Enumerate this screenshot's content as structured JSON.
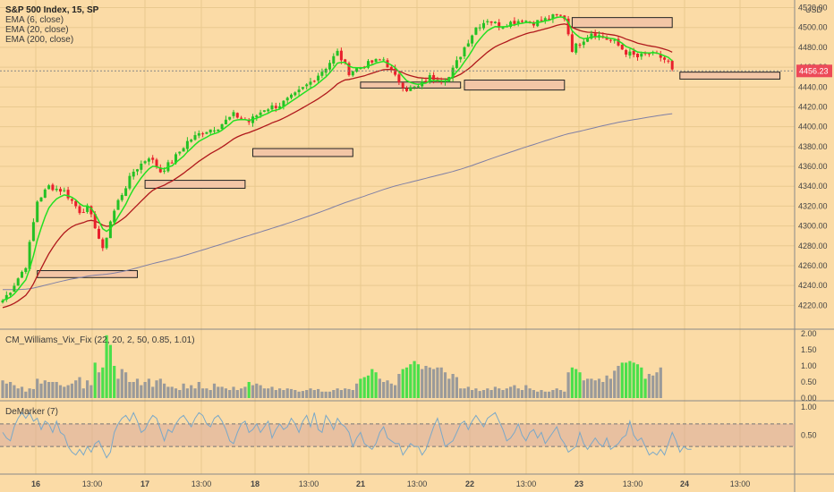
{
  "header": {
    "symbol_line": "S&P 500 Index, 15, SP",
    "currency": "USD",
    "last_price": "4456.23"
  },
  "indicators": {
    "ema6": "EMA (6, close)",
    "ema20": "EMA (20, close)",
    "ema200": "EMA (200, close)",
    "vix_fix": "CM_Williams_Vix_Fix (22, 20, 2, 50, 0.85, 1.01)",
    "demarker": "DeMarker (7)"
  },
  "colors": {
    "background": "#fbdba6",
    "up_candle": "#24c124",
    "down_candle": "#e8202c",
    "ema6": "#22e022",
    "ema20": "#b0181c",
    "ema200": "#7f7fa5",
    "vix_normal": "#9a9a9a",
    "vix_high": "#4be04b",
    "demarker_line": "#7aa8c8",
    "price_tag": "#ed4a59"
  },
  "chart_data": [
    {
      "type": "candlestick",
      "title": "S&P 500 Index, 15, SP",
      "ylim": [
        4205,
        4525
      ],
      "y_ticks": [
        "4220.00",
        "4240.00",
        "4260.00",
        "4280.00",
        "4300.00",
        "4320.00",
        "4340.00",
        "4360.00",
        "4380.00",
        "4400.00",
        "4420.00",
        "4440.00",
        "4460.00",
        "4480.00",
        "4500.00",
        "4520.00"
      ],
      "x_ticks": [
        "16",
        "13:00",
        "17",
        "13:00",
        "18",
        "13:00",
        "21",
        "13:00",
        "22",
        "13:00",
        "23",
        "13:00",
        "24",
        "13:00"
      ],
      "anchors": [
        {
          "t": 0,
          "p": 4225
        },
        {
          "t": 2,
          "p": 4235
        },
        {
          "t": 6,
          "p": 4260
        },
        {
          "t": 9,
          "p": 4325
        },
        {
          "t": 12,
          "p": 4340
        },
        {
          "t": 16,
          "p": 4335
        },
        {
          "t": 20,
          "p": 4315
        },
        {
          "t": 22,
          "p": 4318
        },
        {
          "t": 24,
          "p": 4300
        },
        {
          "t": 26,
          "p": 4275
        },
        {
          "t": 28,
          "p": 4305
        },
        {
          "t": 30,
          "p": 4325
        },
        {
          "t": 34,
          "p": 4355
        },
        {
          "t": 38,
          "p": 4370
        },
        {
          "t": 41,
          "p": 4355
        },
        {
          "t": 44,
          "p": 4365
        },
        {
          "t": 48,
          "p": 4385
        },
        {
          "t": 52,
          "p": 4395
        },
        {
          "t": 56,
          "p": 4400
        },
        {
          "t": 60,
          "p": 4412
        },
        {
          "t": 64,
          "p": 4405
        },
        {
          "t": 68,
          "p": 4418
        },
        {
          "t": 72,
          "p": 4422
        },
        {
          "t": 76,
          "p": 4432
        },
        {
          "t": 80,
          "p": 4445
        },
        {
          "t": 84,
          "p": 4460
        },
        {
          "t": 87,
          "p": 4475
        },
        {
          "t": 90,
          "p": 4455
        },
        {
          "t": 93,
          "p": 4460
        },
        {
          "t": 96,
          "p": 4465
        },
        {
          "t": 99,
          "p": 4468
        },
        {
          "t": 102,
          "p": 4450
        },
        {
          "t": 105,
          "p": 4438
        },
        {
          "t": 108,
          "p": 4440
        },
        {
          "t": 111,
          "p": 4450
        },
        {
          "t": 114,
          "p": 4448
        },
        {
          "t": 116,
          "p": 4450
        },
        {
          "t": 118,
          "p": 4465
        },
        {
          "t": 120,
          "p": 4480
        },
        {
          "t": 123,
          "p": 4500
        },
        {
          "t": 126,
          "p": 4508
        },
        {
          "t": 129,
          "p": 4502
        },
        {
          "t": 132,
          "p": 4505
        },
        {
          "t": 135,
          "p": 4508
        },
        {
          "t": 138,
          "p": 4505
        },
        {
          "t": 141,
          "p": 4508
        },
        {
          "t": 144,
          "p": 4512
        },
        {
          "t": 146,
          "p": 4510
        },
        {
          "t": 148,
          "p": 4478
        },
        {
          "t": 150,
          "p": 4485
        },
        {
          "t": 153,
          "p": 4495
        },
        {
          "t": 156,
          "p": 4490
        },
        {
          "t": 159,
          "p": 4485
        },
        {
          "t": 162,
          "p": 4475
        },
        {
          "t": 165,
          "p": 4470
        },
        {
          "t": 168,
          "p": 4474
        },
        {
          "t": 171,
          "p": 4470
        },
        {
          "t": 173,
          "p": 4465
        },
        {
          "t": 174,
          "p": 4456
        }
      ],
      "ema200_start": 4236,
      "zones": [
        {
          "t0": 9,
          "t1": 35,
          "low": 4248,
          "high": 4255
        },
        {
          "t0": 37,
          "t1": 63,
          "low": 4338,
          "high": 4346
        },
        {
          "t0": 65,
          "t1": 91,
          "low": 4370,
          "high": 4378
        },
        {
          "t0": 93,
          "t1": 119,
          "low": 4439,
          "high": 4445
        },
        {
          "t0": 120,
          "t1": 146,
          "low": 4437,
          "high": 4447
        },
        {
          "t0": 148,
          "t1": 174,
          "low": 4500,
          "high": 4510
        },
        {
          "t0": 176,
          "t1": 202,
          "low": 4448,
          "high": 4455
        }
      ]
    },
    {
      "type": "bar",
      "title": "CM_Williams_Vix_Fix (22, 20, 2, 50, 0.85, 1.01)",
      "ylim": [
        0,
        2
      ],
      "y_ticks": [
        "0.00",
        "0.50",
        "1.00",
        "1.50",
        "2.00"
      ],
      "values": [
        0.55,
        0.45,
        0.5,
        0.4,
        0.3,
        0.35,
        0.2,
        0.3,
        0.28,
        0.6,
        0.45,
        0.55,
        0.5,
        0.5,
        0.5,
        0.4,
        0.35,
        0.4,
        0.45,
        0.55,
        0.65,
        0.3,
        0.55,
        0.4,
        1.1,
        0.8,
        0.95,
        1.95,
        1.65,
        1.0,
        0.6,
        0.9,
        0.8,
        0.5,
        0.5,
        0.6,
        0.4,
        0.5,
        0.6,
        0.35,
        0.55,
        0.6,
        0.45,
        0.35,
        0.35,
        0.3,
        0.25,
        0.45,
        0.3,
        0.4,
        0.3,
        0.5,
        0.3,
        0.3,
        0.25,
        0.45,
        0.35,
        0.35,
        0.3,
        0.25,
        0.35,
        0.25,
        0.3,
        0.35,
        0.5,
        0.4,
        0.45,
        0.4,
        0.3,
        0.3,
        0.35,
        0.25,
        0.3,
        0.25,
        0.3,
        0.28,
        0.25,
        0.2,
        0.22,
        0.25,
        0.3,
        0.25,
        0.28,
        0.2,
        0.2,
        0.2,
        0.25,
        0.3,
        0.25,
        0.3,
        0.28,
        0.25,
        0.45,
        0.6,
        0.65,
        0.7,
        0.9,
        0.8,
        0.6,
        0.5,
        0.55,
        0.45,
        0.4,
        0.75,
        0.9,
        0.95,
        1.05,
        1.15,
        1.05,
        0.9,
        1.0,
        0.95,
        0.9,
        0.95,
        0.95,
        0.8,
        0.6,
        0.75,
        0.65,
        0.3,
        0.3,
        0.35,
        0.25,
        0.3,
        0.22,
        0.25,
        0.3,
        0.25,
        0.35,
        0.3,
        0.25,
        0.3,
        0.35,
        0.4,
        0.3,
        0.25,
        0.4,
        0.3,
        0.25,
        0.2,
        0.25,
        0.2,
        0.2,
        0.25,
        0.3,
        0.25,
        0.2,
        0.8,
        0.95,
        0.9,
        0.8,
        0.55,
        0.6,
        0.6,
        0.55,
        0.6,
        0.5,
        0.7,
        0.6,
        0.85,
        1.0,
        1.1,
        1.1,
        1.15,
        1.1,
        1.05,
        0.95,
        0.6,
        0.75,
        0.7,
        0.8,
        0.95
      ],
      "highlighted": [
        false,
        false,
        false,
        false,
        false,
        false,
        false,
        false,
        false,
        false,
        false,
        false,
        false,
        false,
        false,
        false,
        false,
        false,
        false,
        false,
        false,
        false,
        false,
        false,
        true,
        false,
        true,
        true,
        true,
        true,
        false,
        false,
        false,
        false,
        false,
        false,
        false,
        false,
        false,
        false,
        false,
        false,
        false,
        false,
        false,
        false,
        false,
        false,
        false,
        false,
        false,
        false,
        false,
        false,
        false,
        false,
        false,
        false,
        false,
        false,
        false,
        false,
        false,
        false,
        true,
        false,
        false,
        false,
        false,
        false,
        false,
        false,
        false,
        false,
        false,
        false,
        false,
        false,
        false,
        false,
        false,
        false,
        false,
        false,
        false,
        false,
        false,
        false,
        false,
        false,
        false,
        false,
        false,
        true,
        true,
        true,
        true,
        true,
        false,
        false,
        false,
        false,
        false,
        false,
        true,
        true,
        true,
        true,
        true,
        false,
        false,
        false,
        false,
        false,
        false,
        false,
        false,
        false,
        false,
        false,
        false,
        false,
        false,
        false,
        false,
        false,
        false,
        false,
        false,
        false,
        false,
        false,
        false,
        false,
        false,
        false,
        false,
        false,
        false,
        false,
        false,
        false,
        false,
        false,
        false,
        false,
        false,
        false,
        true,
        true,
        true,
        false,
        false,
        false,
        false,
        false,
        false,
        false,
        false,
        false,
        false,
        true,
        true,
        true,
        true,
        true,
        true,
        true,
        false,
        false,
        false,
        false,
        false
      ]
    },
    {
      "type": "line",
      "title": "DeMarker (7)",
      "ylim": [
        0,
        1
      ],
      "y_ticks": [
        "0.50",
        "1.00"
      ],
      "band": [
        0.3,
        0.7
      ],
      "values": [
        0.55,
        0.45,
        0.4,
        0.65,
        0.8,
        0.9,
        0.8,
        0.9,
        0.75,
        0.8,
        0.6,
        0.75,
        0.7,
        0.55,
        0.75,
        0.55,
        0.5,
        0.3,
        0.2,
        0.15,
        0.25,
        0.15,
        0.3,
        0.2,
        0.35,
        0.4,
        0.25,
        0.1,
        0.2,
        0.55,
        0.7,
        0.8,
        0.85,
        0.75,
        0.9,
        0.75,
        0.55,
        0.6,
        0.75,
        0.85,
        0.8,
        0.6,
        0.4,
        0.6,
        0.55,
        0.7,
        0.8,
        0.85,
        0.75,
        0.65,
        0.8,
        0.9,
        0.85,
        0.7,
        0.65,
        0.8,
        0.85,
        0.75,
        0.6,
        0.4,
        0.35,
        0.55,
        0.7,
        0.75,
        0.55,
        0.6,
        0.7,
        0.55,
        0.65,
        0.75,
        0.45,
        0.6,
        0.7,
        0.6,
        0.65,
        0.8,
        0.7,
        0.55,
        0.75,
        0.85,
        0.65,
        0.9,
        0.6,
        0.55,
        0.85,
        0.75,
        0.6,
        0.8,
        0.7,
        0.65,
        0.55,
        0.3,
        0.45,
        0.55,
        0.35,
        0.3,
        0.25,
        0.35,
        0.55,
        0.65,
        0.45,
        0.4,
        0.35,
        0.35,
        0.15,
        0.25,
        0.35,
        0.3,
        0.3,
        0.15,
        0.25,
        0.45,
        0.65,
        0.8,
        0.55,
        0.3,
        0.35,
        0.4,
        0.55,
        0.7,
        0.75,
        0.6,
        0.75,
        0.85,
        0.75,
        0.65,
        0.8,
        0.85,
        0.9,
        0.75,
        0.6,
        0.4,
        0.45,
        0.55,
        0.7,
        0.5,
        0.4,
        0.55,
        0.6,
        0.45,
        0.55,
        0.35,
        0.45,
        0.55,
        0.65,
        0.45,
        0.35,
        0.2,
        0.25,
        0.3,
        0.55,
        0.35,
        0.25,
        0.35,
        0.45,
        0.35,
        0.3,
        0.45,
        0.25,
        0.3,
        0.35,
        0.45,
        0.5,
        0.75,
        0.5,
        0.4,
        0.45,
        0.3,
        0.15,
        0.2,
        0.15,
        0.25,
        0.15,
        0.35,
        0.55,
        0.4,
        0.2,
        0.3,
        0.25,
        0.25
      ]
    }
  ]
}
